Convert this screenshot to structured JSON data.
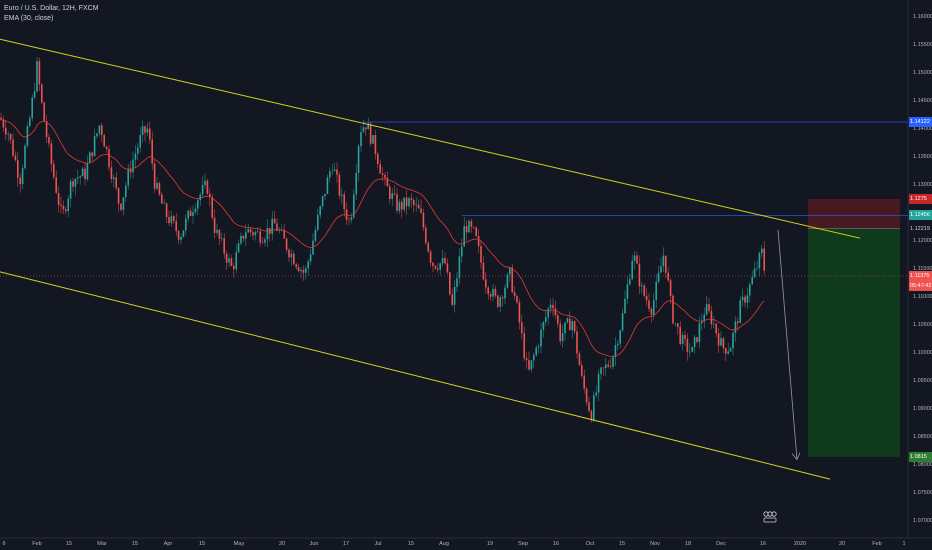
{
  "legend": {
    "symbol_line": "Euro / U.S. Dollar, 12H, FXCM",
    "indicator_line": "EMA (30, close)"
  },
  "price_labels": {
    "resistance": "1.14122",
    "mid_level": "1.12456",
    "entry": "1.12219",
    "current": "1.11375",
    "countdown": "05:47:42",
    "target": "1.0815",
    "stop": "1.1275"
  },
  "colors": {
    "background": "#131722",
    "candle_up": "#26a69a",
    "candle_down": "#ef5350",
    "ema": "#e53935",
    "channel": "#d4d420",
    "horizontal_level": "#2962ff",
    "profit_zone": "#0f3d1c",
    "loss_zone": "#4a1a22",
    "current_price_line": "#ef5350",
    "arrow": "#9598a1"
  },
  "chart_data": {
    "type": "candlestick",
    "title": "Euro / U.S. Dollar, 12H, FXCM",
    "indicator": "EMA (30, close)",
    "ylim": [
      1.067,
      1.163
    ],
    "y_ticks": [
      "1.16000",
      "1.15500",
      "1.15000",
      "1.14500",
      "1.14000",
      "1.13500",
      "1.13000",
      "1.12500",
      "1.12000",
      "1.11500",
      "1.11000",
      "1.10500",
      "1.10000",
      "1.09500",
      "1.09000",
      "1.08500",
      "1.08000",
      "1.07500",
      "1.07000"
    ],
    "x_ticks": [
      "6",
      "Feb",
      "15",
      "Mar",
      "15",
      "Apr",
      "15",
      "May",
      "20",
      "Jun",
      "17",
      "Jul",
      "15",
      "Aug",
      "19",
      "Sep",
      "16",
      "Oct",
      "15",
      "Nov",
      "18",
      "Dec",
      "16",
      "2020",
      "20",
      "Feb",
      "1"
    ],
    "price_path": [
      [
        0,
        1.142
      ],
      [
        8,
        1.1395
      ],
      [
        20,
        1.131
      ],
      [
        30,
        1.142
      ],
      [
        37,
        1.151
      ],
      [
        42,
        1.144
      ],
      [
        50,
        1.135
      ],
      [
        62,
        1.124
      ],
      [
        72,
        1.131
      ],
      [
        85,
        1.132
      ],
      [
        100,
        1.141
      ],
      [
        112,
        1.132
      ],
      [
        120,
        1.126
      ],
      [
        130,
        1.133
      ],
      [
        142,
        1.139
      ],
      [
        148,
        1.14
      ],
      [
        155,
        1.13
      ],
      [
        165,
        1.125
      ],
      [
        180,
        1.121
      ],
      [
        195,
        1.127
      ],
      [
        207,
        1.13
      ],
      [
        215,
        1.122
      ],
      [
        232,
        1.115
      ],
      [
        245,
        1.122
      ],
      [
        262,
        1.121
      ],
      [
        275,
        1.123
      ],
      [
        290,
        1.118
      ],
      [
        305,
        1.114
      ],
      [
        318,
        1.124
      ],
      [
        332,
        1.134
      ],
      [
        342,
        1.127
      ],
      [
        350,
        1.123
      ],
      [
        360,
        1.14
      ],
      [
        366,
        1.141
      ],
      [
        376,
        1.136
      ],
      [
        385,
        1.13
      ],
      [
        398,
        1.126
      ],
      [
        410,
        1.127
      ],
      [
        420,
        1.125
      ],
      [
        432,
        1.116
      ],
      [
        445,
        1.116
      ],
      [
        452,
        1.108
      ],
      [
        465,
        1.123
      ],
      [
        475,
        1.121
      ],
      [
        485,
        1.113
      ],
      [
        497,
        1.109
      ],
      [
        510,
        1.114
      ],
      [
        518,
        1.107
      ],
      [
        528,
        1.096
      ],
      [
        540,
        1.103
      ],
      [
        552,
        1.11
      ],
      [
        560,
        1.103
      ],
      [
        572,
        1.106
      ],
      [
        582,
        1.095
      ],
      [
        591,
        1.089
      ],
      [
        600,
        1.096
      ],
      [
        612,
        1.099
      ],
      [
        622,
        1.106
      ],
      [
        633,
        1.118
      ],
      [
        642,
        1.111
      ],
      [
        652,
        1.108
      ],
      [
        664,
        1.118
      ],
      [
        672,
        1.107
      ],
      [
        682,
        1.102
      ],
      [
        692,
        1.1
      ],
      [
        705,
        1.108
      ],
      [
        712,
        1.106
      ],
      [
        722,
        1.101
      ],
      [
        730,
        1.101
      ],
      [
        740,
        1.108
      ],
      [
        750,
        1.112
      ],
      [
        758,
        1.116
      ],
      [
        762,
        1.118
      ],
      [
        765,
        1.114
      ]
    ],
    "channel_upper": [
      [
        0,
        1.156
      ],
      [
        860,
        1.1205
      ]
    ],
    "channel_lower": [
      [
        0,
        1.1145
      ],
      [
        830,
        1.0775
      ]
    ],
    "resistance_level": 1.14122,
    "mid_level": 1.12456,
    "current_price": 1.11375,
    "short_position": {
      "entry": 1.12219,
      "stop": 1.1275,
      "target": 1.0815
    },
    "forecast_arrow": {
      "from": 1.122,
      "to": 1.081
    }
  }
}
